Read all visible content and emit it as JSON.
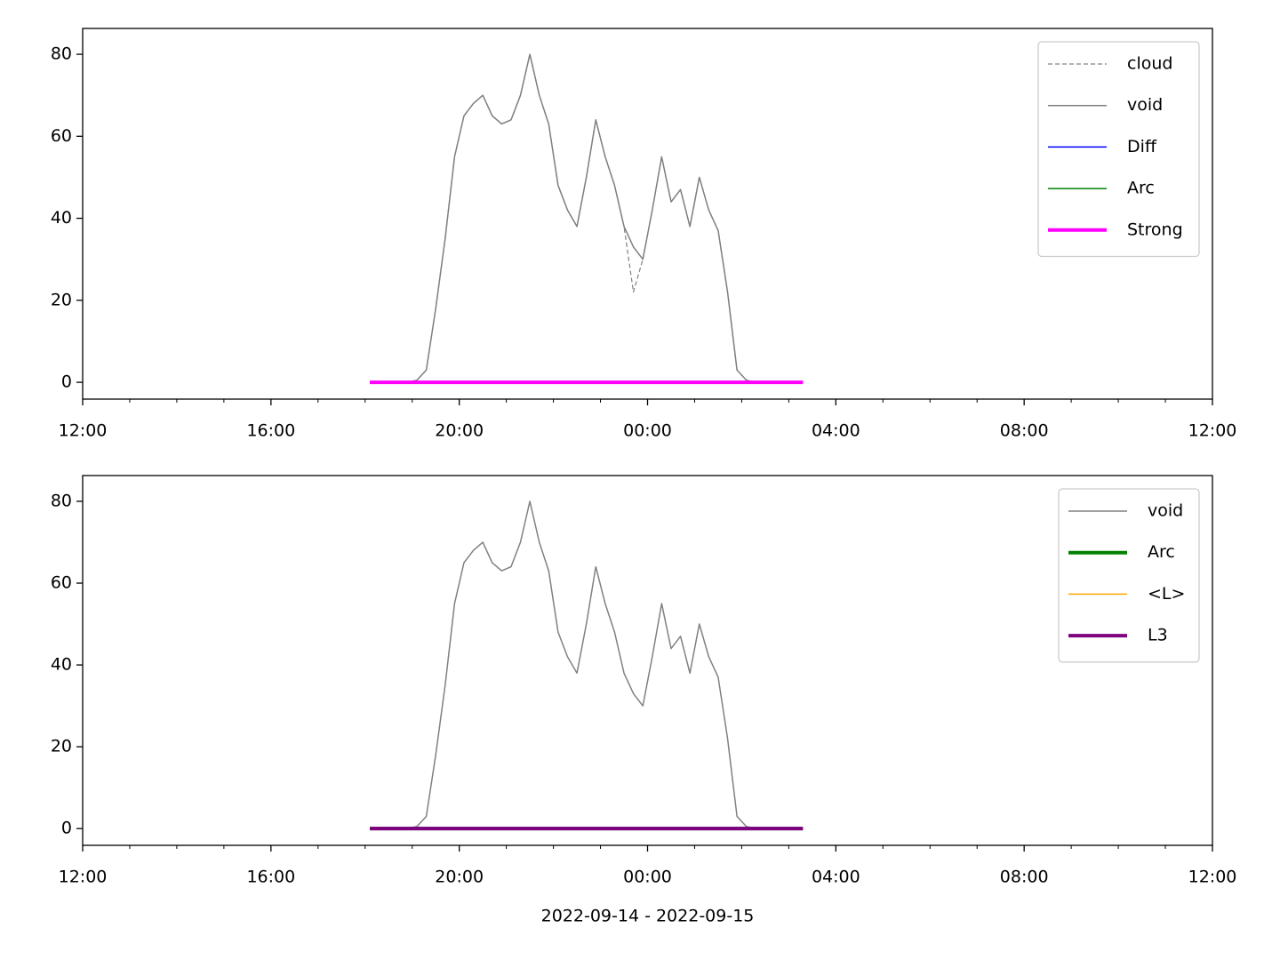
{
  "chart_data": [
    {
      "type": "line",
      "x": [
        18.1,
        18.3,
        18.5,
        18.7,
        18.9,
        19.1,
        19.3,
        19.5,
        19.7,
        19.9,
        20.1,
        20.3,
        20.5,
        20.7,
        20.9,
        21.1,
        21.3,
        21.5,
        21.7,
        21.9,
        22.1,
        22.3,
        22.5,
        22.7,
        22.9,
        23.1,
        23.3,
        23.5,
        23.7,
        23.9,
        24.1,
        24.3,
        24.5,
        24.7,
        24.9,
        25.1,
        25.3,
        25.5,
        25.7,
        25.9,
        26.1,
        26.3,
        26.5,
        26.7,
        26.9,
        27.1,
        27.3
      ],
      "series": [
        {
          "name": "cloud",
          "color": "#808080",
          "linestyle": "dashed",
          "linewidth": 1.2,
          "values": [
            0,
            0,
            0,
            0,
            0,
            0.5,
            3,
            18,
            35,
            55,
            65,
            68,
            70,
            65,
            63,
            64,
            70,
            80,
            70,
            63,
            48,
            42,
            38,
            50,
            64,
            55,
            48,
            38,
            22,
            30,
            42,
            55,
            44,
            47,
            38,
            50,
            42,
            37,
            22,
            3,
            0.5,
            0,
            0,
            0,
            0,
            0,
            0
          ]
        },
        {
          "name": "void",
          "color": "#808080",
          "linestyle": "solid",
          "linewidth": 1.5,
          "values": [
            0,
            0,
            0,
            0,
            0,
            0.5,
            3,
            18,
            35,
            55,
            65,
            68,
            70,
            65,
            63,
            64,
            70,
            80,
            70,
            63,
            48,
            42,
            38,
            50,
            64,
            55,
            48,
            38,
            33,
            30,
            42,
            55,
            44,
            47,
            38,
            50,
            42,
            37,
            22,
            3,
            0.5,
            0,
            0,
            0,
            0,
            0,
            0
          ]
        },
        {
          "name": "Diff",
          "color": "#0000ff",
          "linestyle": "solid",
          "linewidth": 1.5,
          "values": [
            0,
            0,
            0,
            0,
            0,
            0,
            0,
            0,
            0,
            0,
            0,
            0,
            0,
            0,
            0,
            0,
            0,
            0,
            0,
            0,
            0,
            0,
            0,
            0,
            0,
            0,
            0,
            0,
            0,
            0,
            0,
            0,
            0,
            0,
            0,
            0,
            0,
            0,
            0,
            0,
            0,
            0,
            0,
            0,
            0,
            0,
            0
          ]
        },
        {
          "name": "Arc",
          "color": "#008000",
          "linestyle": "solid",
          "linewidth": 1.5,
          "values": [
            0,
            0,
            0,
            0,
            0,
            0,
            0,
            0,
            0,
            0,
            0,
            0,
            0,
            0,
            0,
            0,
            0,
            0,
            0,
            0,
            0,
            0,
            0,
            0,
            0,
            0,
            0,
            0,
            0,
            0,
            0,
            0,
            0,
            0,
            0,
            0,
            0,
            0,
            0,
            0,
            0,
            0,
            0,
            0,
            0,
            0,
            0
          ]
        },
        {
          "name": "Strong",
          "color": "#ff00ff",
          "linestyle": "solid",
          "linewidth": 4,
          "values": [
            0,
            0,
            0,
            0,
            0,
            0,
            0,
            0,
            0,
            0,
            0,
            0,
            0,
            0,
            0,
            0,
            0,
            0,
            0,
            0,
            0,
            0,
            0,
            0,
            0,
            0,
            0,
            0,
            0,
            0,
            0,
            0,
            0,
            0,
            0,
            0,
            0,
            0,
            0,
            0,
            0,
            0,
            0,
            0,
            0,
            0,
            0
          ]
        }
      ],
      "xlim": [
        12,
        36
      ],
      "xticks": [
        {
          "value": 12,
          "label": "12:00"
        },
        {
          "value": 16,
          "label": "16:00"
        },
        {
          "value": 20,
          "label": "20:00"
        },
        {
          "value": 24,
          "label": "00:00"
        },
        {
          "value": 28,
          "label": "04:00"
        },
        {
          "value": 32,
          "label": "08:00"
        },
        {
          "value": 36,
          "label": "12:00"
        }
      ],
      "xminorticks": [
        13,
        14,
        15,
        17,
        18,
        19,
        21,
        22,
        23,
        25,
        26,
        27,
        29,
        30,
        31,
        33,
        34,
        35
      ],
      "ylim": [
        -4.1,
        86.3
      ],
      "yticks": [
        0,
        20,
        40,
        60,
        80
      ],
      "legend": "upper right"
    },
    {
      "type": "line",
      "x": [
        18.1,
        18.3,
        18.5,
        18.7,
        18.9,
        19.1,
        19.3,
        19.5,
        19.7,
        19.9,
        20.1,
        20.3,
        20.5,
        20.7,
        20.9,
        21.1,
        21.3,
        21.5,
        21.7,
        21.9,
        22.1,
        22.3,
        22.5,
        22.7,
        22.9,
        23.1,
        23.3,
        23.5,
        23.7,
        23.9,
        24.1,
        24.3,
        24.5,
        24.7,
        24.9,
        25.1,
        25.3,
        25.5,
        25.7,
        25.9,
        26.1,
        26.3,
        26.5,
        26.7,
        26.9,
        27.1,
        27.3
      ],
      "series": [
        {
          "name": "void",
          "color": "#808080",
          "linestyle": "solid",
          "linewidth": 1.5,
          "values": [
            0,
            0,
            0,
            0,
            0,
            0.5,
            3,
            18,
            35,
            55,
            65,
            68,
            70,
            65,
            63,
            64,
            70,
            80,
            70,
            63,
            48,
            42,
            38,
            50,
            64,
            55,
            48,
            38,
            33,
            30,
            42,
            55,
            44,
            47,
            38,
            50,
            42,
            37,
            22,
            3,
            0.5,
            0,
            0,
            0,
            0,
            0,
            0
          ]
        },
        {
          "name": "Arc",
          "color": "#008000",
          "linestyle": "solid",
          "linewidth": 4,
          "values": [
            0,
            0,
            0,
            0,
            0,
            0,
            0,
            0,
            0,
            0,
            0,
            0,
            0,
            0,
            0,
            0,
            0,
            0,
            0,
            0,
            0,
            0,
            0,
            0,
            0,
            0,
            0,
            0,
            0,
            0,
            0,
            0,
            0,
            0,
            0,
            0,
            0,
            0,
            0,
            0,
            0,
            0,
            0,
            0,
            0,
            0,
            0
          ]
        },
        {
          "name": "<L>",
          "color": "#ffa500",
          "linestyle": "solid",
          "linewidth": 1.5,
          "values": [
            0,
            0,
            0,
            0,
            0,
            0,
            0,
            0,
            0,
            0,
            0,
            0,
            0,
            0,
            0,
            0,
            0,
            0,
            0,
            0,
            0,
            0,
            0,
            0,
            0,
            0,
            0,
            0,
            0,
            0,
            0,
            0,
            0,
            0,
            0,
            0,
            0,
            0,
            0,
            0,
            0,
            0,
            0,
            0,
            0,
            0,
            0
          ]
        },
        {
          "name": "L3",
          "color": "#800080",
          "linestyle": "solid",
          "linewidth": 4,
          "values": [
            0,
            0,
            0,
            0,
            0,
            0,
            0,
            0,
            0,
            0,
            0,
            0,
            0,
            0,
            0,
            0,
            0,
            0,
            0,
            0,
            0,
            0,
            0,
            0,
            0,
            0,
            0,
            0,
            0,
            0,
            0,
            0,
            0,
            0,
            0,
            0,
            0,
            0,
            0,
            0,
            0,
            0,
            0,
            0,
            0,
            0,
            0
          ]
        }
      ],
      "xlim": [
        12,
        36
      ],
      "xticks": [
        {
          "value": 12,
          "label": "12:00"
        },
        {
          "value": 16,
          "label": "16:00"
        },
        {
          "value": 20,
          "label": "20:00"
        },
        {
          "value": 24,
          "label": "00:00"
        },
        {
          "value": 28,
          "label": "04:00"
        },
        {
          "value": 32,
          "label": "08:00"
        },
        {
          "value": 36,
          "label": "12:00"
        }
      ],
      "xminorticks": [
        13,
        14,
        15,
        17,
        18,
        19,
        21,
        22,
        23,
        25,
        26,
        27,
        29,
        30,
        31,
        33,
        34,
        35
      ],
      "ylim": [
        -4.1,
        86.3
      ],
      "yticks": [
        0,
        20,
        40,
        60,
        80
      ],
      "xlabel": "2022-09-14 - 2022-09-15",
      "legend": "upper right"
    }
  ]
}
